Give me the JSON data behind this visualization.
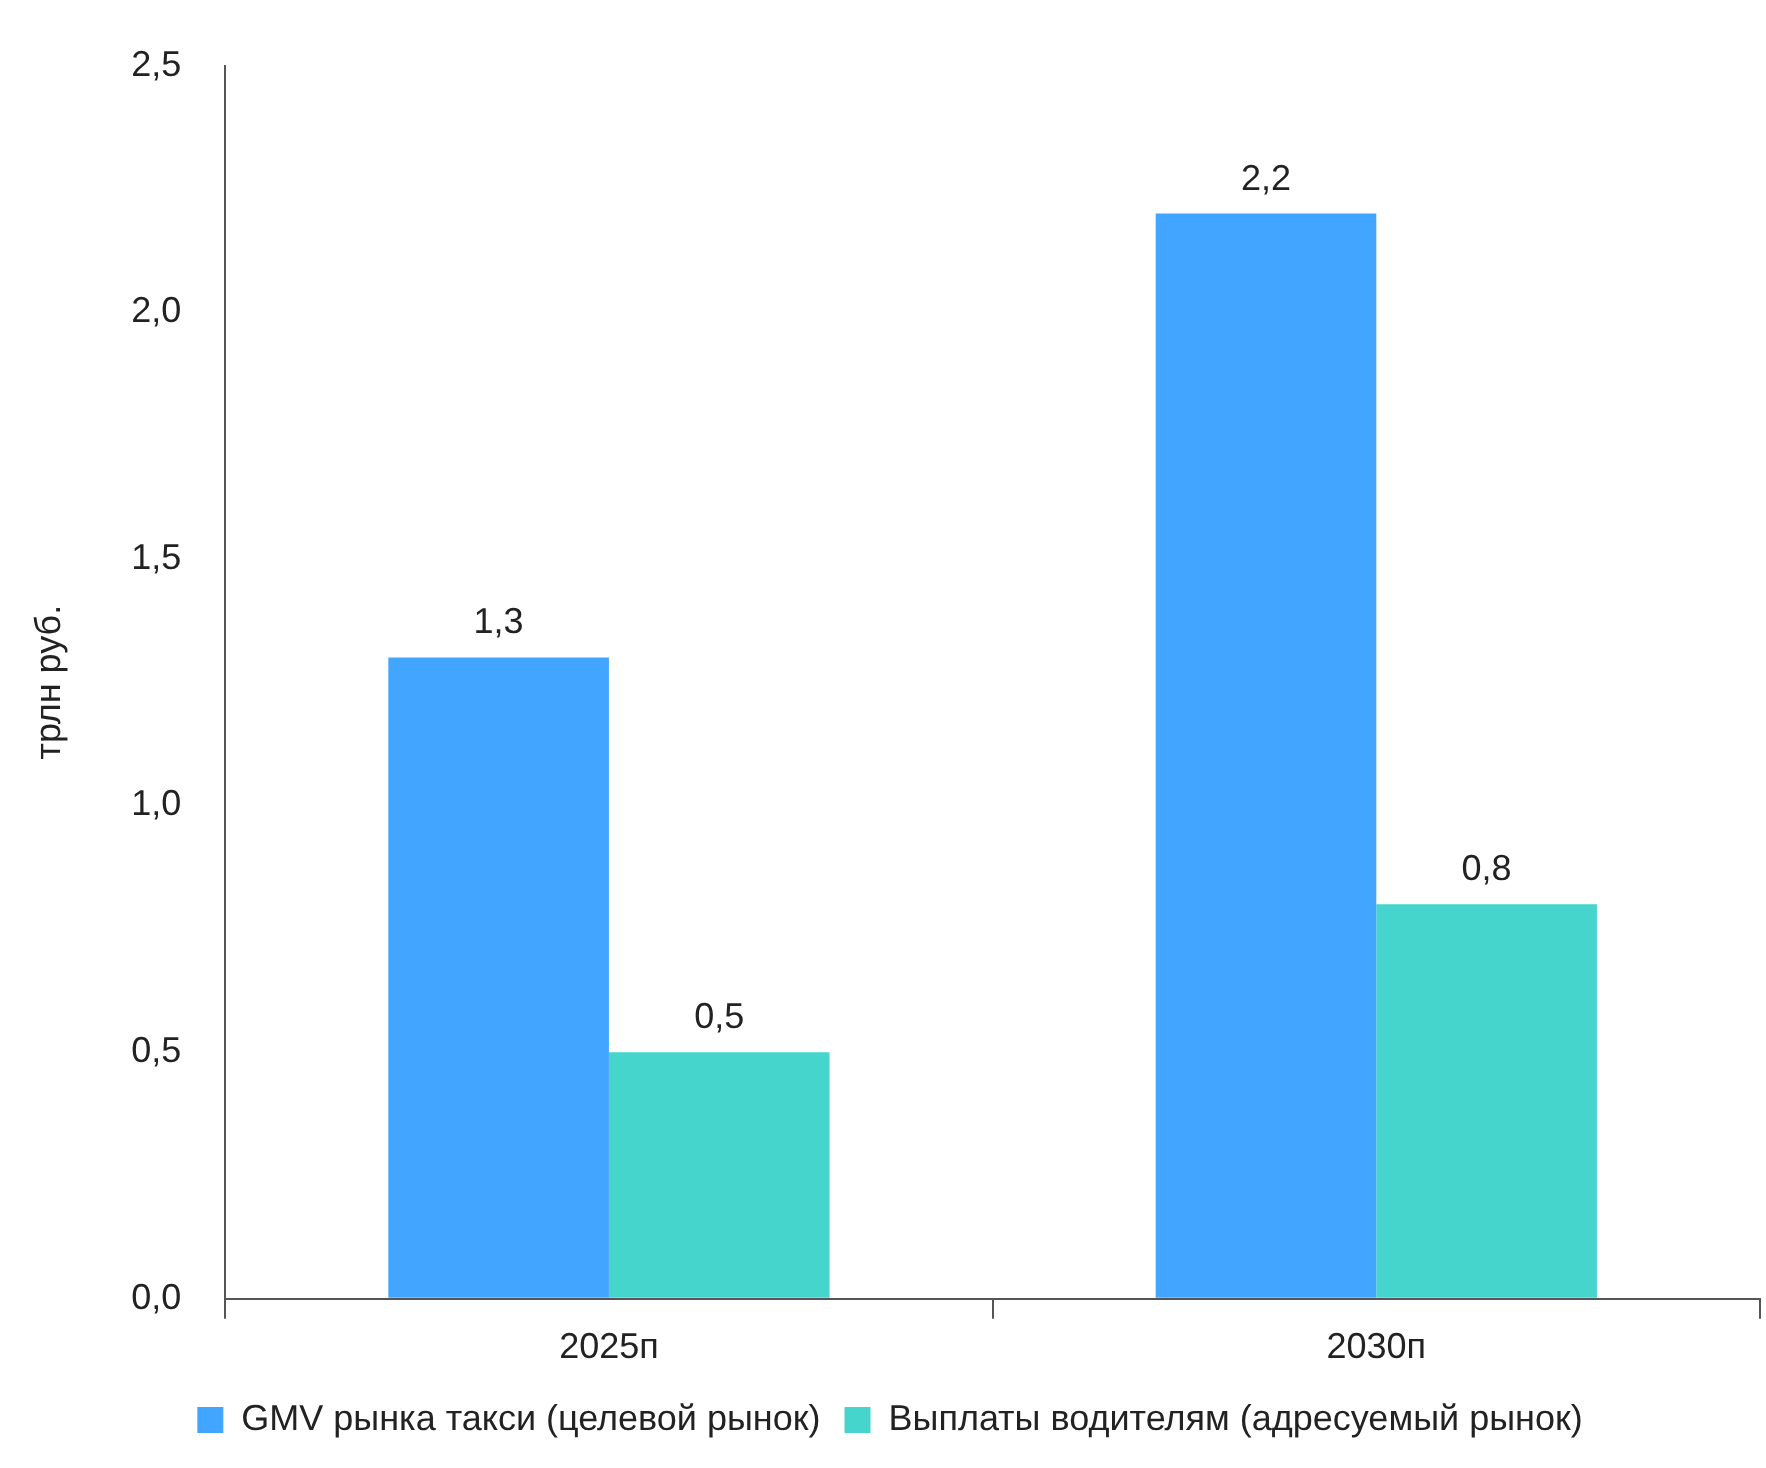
{
  "chart_data": {
    "type": "bar",
    "ylabel": "трлн руб.",
    "categories": [
      "2025п",
      "2030п"
    ],
    "series": [
      {
        "name": "GMV рынка такси (целевой рынок)",
        "color": "#42a5ff",
        "values": [
          1.3,
          2.2
        ],
        "value_labels": [
          "1,3",
          "2,2"
        ]
      },
      {
        "name": "Выплаты водителям (адресуемый рынок)",
        "color": "#45d5cd",
        "values": [
          0.5,
          0.8
        ],
        "value_labels": [
          "0,5",
          "0,8"
        ]
      }
    ],
    "ylim": [
      0,
      2.5
    ],
    "yticks": [
      {
        "value": 0,
        "label": "0,0"
      },
      {
        "value": 0.5,
        "label": "0,5"
      },
      {
        "value": 1,
        "label": "1,0"
      },
      {
        "value": 1.5,
        "label": "1,5"
      },
      {
        "value": 2,
        "label": "2,0"
      },
      {
        "value": 2.5,
        "label": "2,5"
      }
    ],
    "grid": false,
    "legend": "bottom"
  }
}
